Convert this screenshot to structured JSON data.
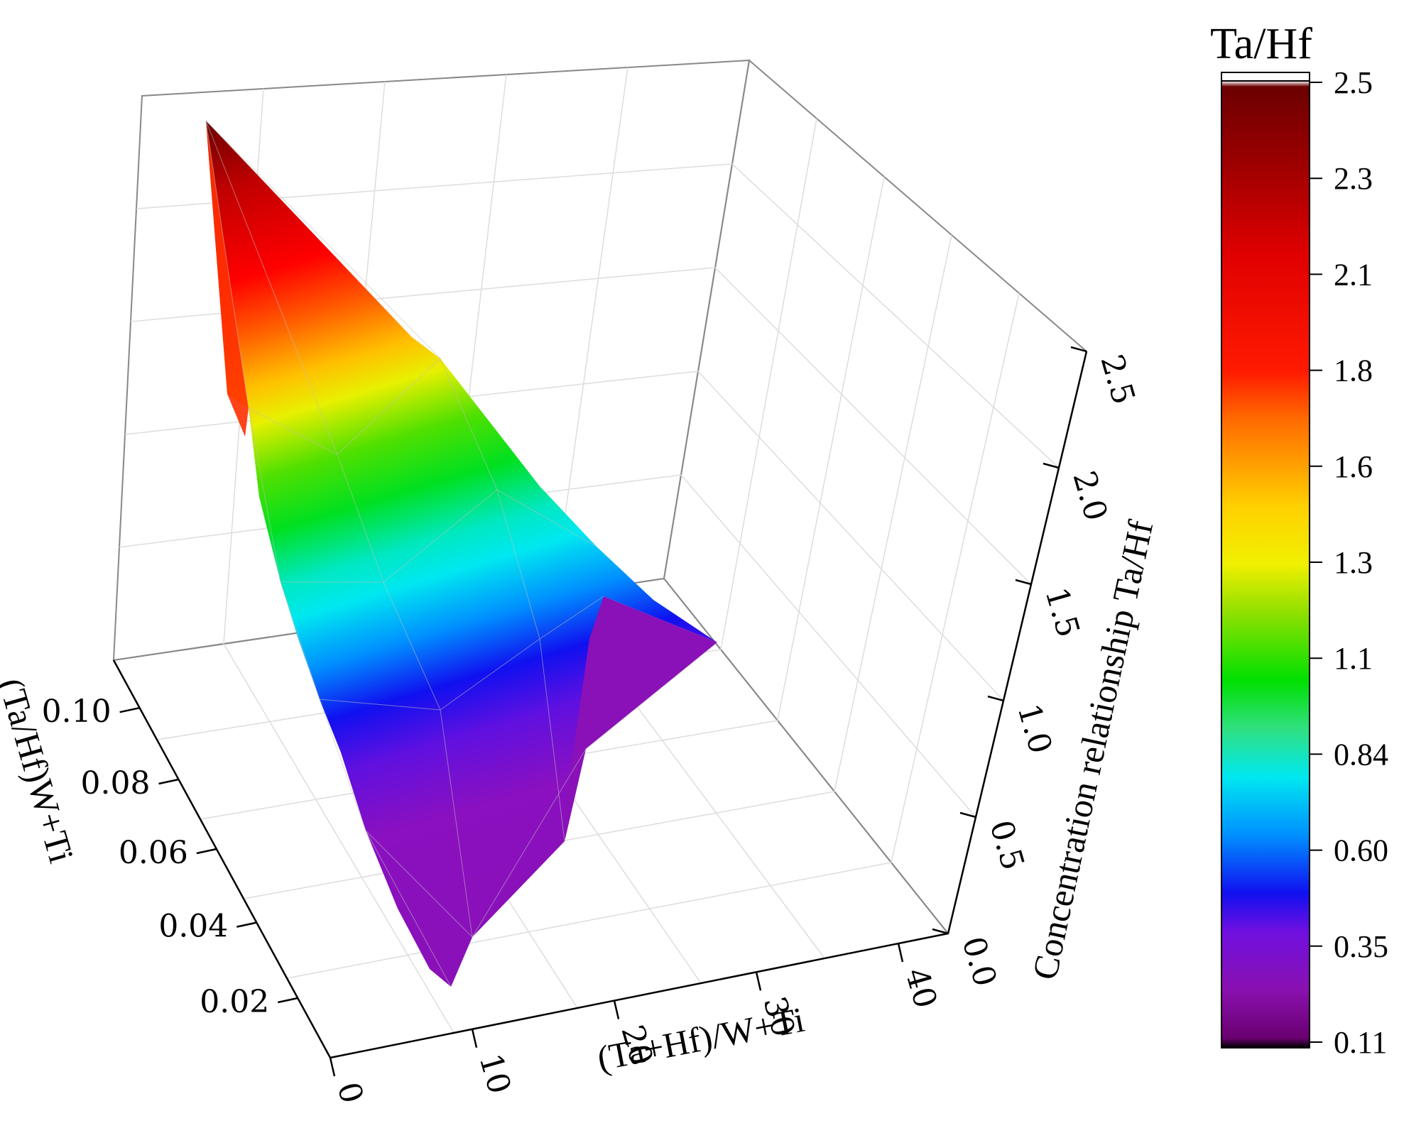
{
  "chart_data": {
    "type": "surface3d",
    "x_axis": {
      "label": "(Ta+Hf)/W+Ti",
      "ticks": [
        "0",
        "10",
        "20",
        "30",
        "40"
      ],
      "range": [
        0,
        40
      ]
    },
    "y_axis": {
      "label": "(Ta/Hf)W+Ti",
      "ticks": [
        "0.02",
        "0.04",
        "0.06",
        "0.08",
        "0.10"
      ],
      "range": [
        0.02,
        0.1
      ]
    },
    "z_axis": {
      "label": "Concentration relationship Ta/Hf",
      "ticks": [
        "0.0",
        "0.5",
        "1.0",
        "1.5",
        "2.0",
        "2.5"
      ],
      "range": [
        0,
        2.5
      ]
    },
    "colorbar": {
      "title": "Ta/Hf",
      "labels": [
        "2.5",
        "2.3",
        "2.1",
        "1.8",
        "1.6",
        "1.3",
        "1.1",
        "0.84",
        "0.60",
        "0.35",
        "0.11"
      ],
      "range": [
        0.11,
        2.5
      ]
    },
    "surface": {
      "description_points": [
        {
          "x": 8,
          "y": 0.1,
          "z": 2.5
        },
        {
          "x": 8,
          "y": 0.02,
          "z": 0.11
        },
        {
          "x": 30,
          "y": 0.02,
          "z": 0.2
        },
        {
          "x": 40,
          "y": 0.1,
          "z": 0.3
        }
      ]
    },
    "grid": true
  }
}
